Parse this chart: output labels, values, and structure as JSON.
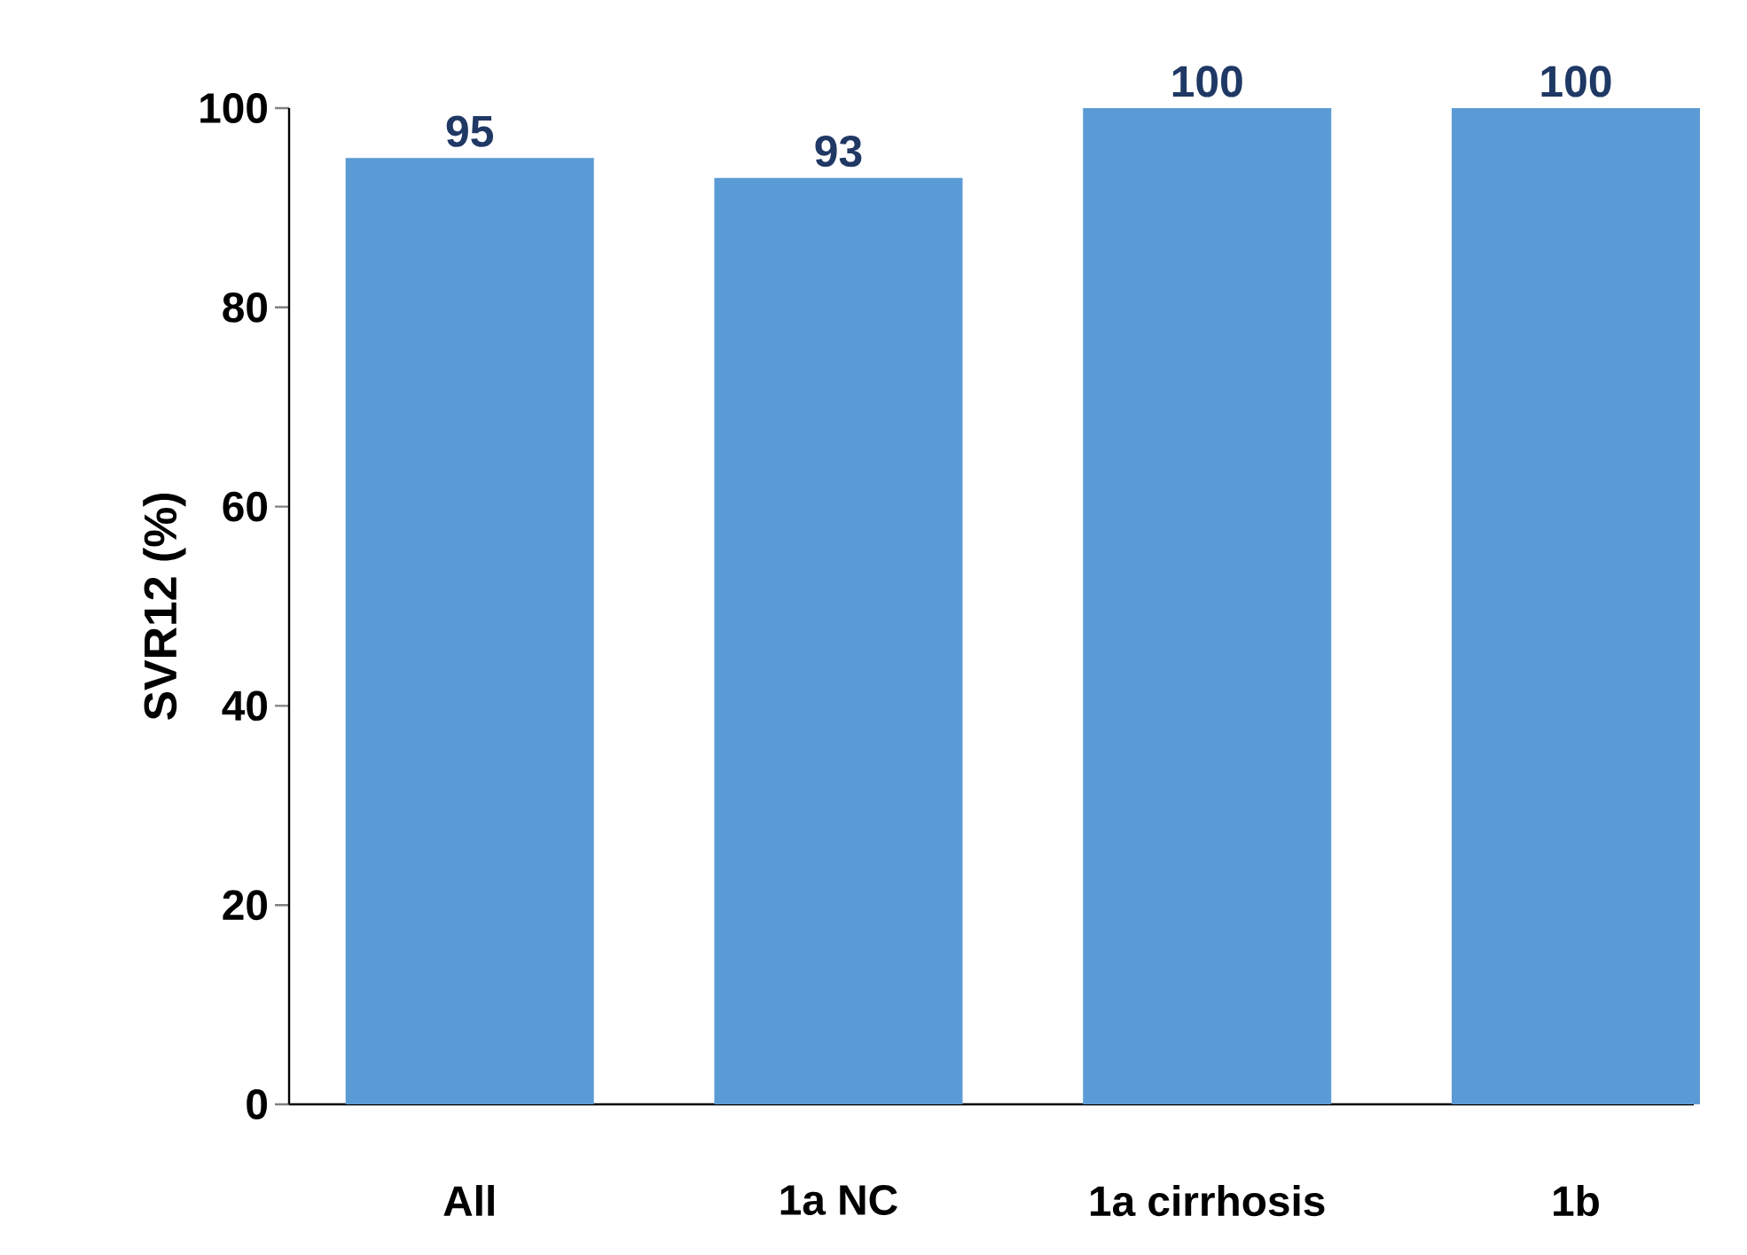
{
  "chart_data": {
    "type": "bar",
    "ylabel": "SVR12 (%)",
    "categories": [
      "All",
      "1a NC",
      "1a cirrhosis",
      "1b"
    ],
    "values": [
      95,
      93,
      100,
      100
    ],
    "color": "#5b9bd5",
    "ylim": [
      0,
      100
    ],
    "yticks": [
      0,
      20,
      40,
      60,
      80,
      100
    ],
    "data_labels": true,
    "grid": false
  }
}
